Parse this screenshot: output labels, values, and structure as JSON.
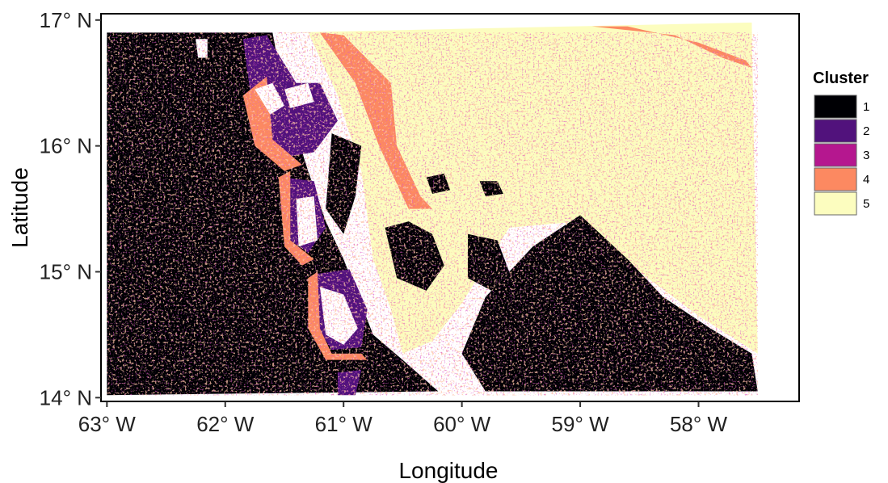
{
  "chart_data": {
    "type": "heatmap",
    "title": "",
    "xlabel": "Longitude",
    "ylabel": "Latitude",
    "xlim": [
      -63.05,
      -57.15
    ],
    "ylim": [
      13.97,
      17.05
    ],
    "x_ticks": [
      {
        "value": -63,
        "label": "63° W"
      },
      {
        "value": -62,
        "label": "62° W"
      },
      {
        "value": -61,
        "label": "61° W"
      },
      {
        "value": -60,
        "label": "60° W"
      },
      {
        "value": -59,
        "label": "59° W"
      },
      {
        "value": -58,
        "label": "58° W"
      }
    ],
    "y_ticks": [
      {
        "value": 14,
        "label": "14° N"
      },
      {
        "value": 15,
        "label": "15° N"
      },
      {
        "value": 16,
        "label": "16° N"
      },
      {
        "value": 17,
        "label": "17° N"
      }
    ],
    "grid": false,
    "legend": {
      "title": "Cluster",
      "placement": "right",
      "entries": [
        {
          "label": "1",
          "color": "#000004"
        },
        {
          "label": "2",
          "color": "#51127c"
        },
        {
          "label": "3",
          "color": "#b5178f"
        },
        {
          "label": "4",
          "color": "#fc8961"
        },
        {
          "label": "5",
          "color": "#fcfdbf"
        }
      ]
    },
    "land_color": "#ffffff",
    "regions": [
      {
        "cluster": 1,
        "description": "western deep water",
        "polygon": [
          [
            -63,
            16.9
          ],
          [
            -61.6,
            16.9
          ],
          [
            -61.5,
            16.4
          ],
          [
            -61.3,
            15.8
          ],
          [
            -61.15,
            15.4
          ],
          [
            -61.0,
            15.1
          ],
          [
            -60.75,
            14.5
          ],
          [
            -60.5,
            14.3
          ],
          [
            -60.2,
            14.05
          ],
          [
            -63,
            14.02
          ]
        ]
      },
      {
        "cluster": 5,
        "description": "eastern open water",
        "polygon": [
          [
            -61.5,
            16.9
          ],
          [
            -57.55,
            16.98
          ],
          [
            -57.5,
            14.35
          ],
          [
            -58.0,
            14.65
          ],
          [
            -58.5,
            15.0
          ],
          [
            -59.0,
            15.4
          ],
          [
            -59.6,
            15.35
          ],
          [
            -60.0,
            14.75
          ],
          [
            -60.25,
            14.45
          ],
          [
            -60.5,
            14.35
          ],
          [
            -60.6,
            14.7
          ],
          [
            -60.75,
            15.1
          ],
          [
            -60.85,
            15.8
          ],
          [
            -61.05,
            16.4
          ],
          [
            -61.3,
            16.9
          ]
        ]
      },
      {
        "cluster": 1,
        "description": "southeastern patch",
        "polygon": [
          [
            -59.8,
            14.8
          ],
          [
            -59.4,
            15.2
          ],
          [
            -59.0,
            15.45
          ],
          [
            -58.6,
            15.1
          ],
          [
            -58.3,
            14.8
          ],
          [
            -57.9,
            14.55
          ],
          [
            -57.55,
            14.35
          ],
          [
            -57.5,
            14.05
          ],
          [
            -59.8,
            14.05
          ],
          [
            -60.0,
            14.35
          ]
        ]
      },
      {
        "cluster": 1,
        "description": "central channel",
        "polygon": [
          [
            -61.1,
            16.1
          ],
          [
            -60.85,
            16.0
          ],
          [
            -60.9,
            15.6
          ],
          [
            -61.0,
            15.3
          ],
          [
            -61.15,
            15.5
          ]
        ]
      },
      {
        "cluster": 1,
        "description": "central blob A",
        "polygon": [
          [
            -60.65,
            15.35
          ],
          [
            -60.45,
            15.4
          ],
          [
            -60.25,
            15.3
          ],
          [
            -60.15,
            15.05
          ],
          [
            -60.3,
            14.85
          ],
          [
            -60.55,
            14.95
          ]
        ]
      },
      {
        "cluster": 1,
        "description": "central blob B",
        "polygon": [
          [
            -59.95,
            15.3
          ],
          [
            -59.7,
            15.25
          ],
          [
            -59.6,
            15.0
          ],
          [
            -59.75,
            14.85
          ],
          [
            -59.95,
            14.95
          ]
        ]
      },
      {
        "cluster": 1,
        "description": "central blob C",
        "polygon": [
          [
            -60.3,
            15.75
          ],
          [
            -60.15,
            15.78
          ],
          [
            -60.1,
            15.65
          ],
          [
            -60.25,
            15.62
          ]
        ]
      },
      {
        "cluster": 1,
        "description": "central blob D",
        "polygon": [
          [
            -59.85,
            15.72
          ],
          [
            -59.7,
            15.72
          ],
          [
            -59.65,
            15.62
          ],
          [
            -59.8,
            15.6
          ]
        ]
      },
      {
        "cluster": 4,
        "description": "eastern shelf band",
        "polygon": [
          [
            -61.2,
            16.9
          ],
          [
            -61.0,
            16.88
          ],
          [
            -60.6,
            16.5
          ],
          [
            -60.55,
            16.0
          ],
          [
            -60.35,
            15.6
          ],
          [
            -60.25,
            15.5
          ],
          [
            -60.45,
            15.5
          ],
          [
            -60.7,
            16.0
          ],
          [
            -60.9,
            16.5
          ]
        ]
      },
      {
        "cluster": 4,
        "description": "northeast arc",
        "polygon": [
          [
            -58.9,
            16.95
          ],
          [
            -58.2,
            16.88
          ],
          [
            -57.8,
            16.7
          ],
          [
            -57.55,
            16.62
          ],
          [
            -57.6,
            16.68
          ],
          [
            -58.0,
            16.82
          ],
          [
            -58.6,
            16.95
          ]
        ]
      },
      {
        "cluster": 2,
        "description": "shelf around northern island",
        "polygon": [
          [
            -61.85,
            16.85
          ],
          [
            -61.65,
            16.88
          ],
          [
            -61.4,
            16.5
          ],
          [
            -61.2,
            16.5
          ],
          [
            -61.05,
            16.2
          ],
          [
            -61.25,
            15.95
          ],
          [
            -61.55,
            15.9
          ],
          [
            -61.75,
            16.15
          ],
          [
            -61.8,
            16.5
          ]
        ]
      },
      {
        "cluster": 2,
        "description": "shelf around middle island",
        "polygon": [
          [
            -61.5,
            15.75
          ],
          [
            -61.25,
            15.72
          ],
          [
            -61.15,
            15.35
          ],
          [
            -61.3,
            15.15
          ],
          [
            -61.45,
            15.25
          ]
        ]
      },
      {
        "cluster": 2,
        "description": "shelf around southern island",
        "polygon": [
          [
            -61.25,
            14.98
          ],
          [
            -60.95,
            15.02
          ],
          [
            -60.8,
            14.7
          ],
          [
            -60.85,
            14.4
          ],
          [
            -61.1,
            14.38
          ],
          [
            -61.25,
            14.6
          ]
        ]
      },
      {
        "cluster": 2,
        "description": "shelf at southern edge",
        "polygon": [
          [
            -61.05,
            14.2
          ],
          [
            -60.85,
            14.22
          ],
          [
            -60.9,
            14.02
          ],
          [
            -61.05,
            14.02
          ]
        ]
      },
      {
        "cluster": 4,
        "description": "coastal fringe north",
        "polygon": [
          [
            -61.85,
            16.4
          ],
          [
            -61.65,
            16.55
          ],
          [
            -61.6,
            16.05
          ],
          [
            -61.35,
            15.85
          ],
          [
            -61.5,
            15.8
          ],
          [
            -61.75,
            16.0
          ]
        ]
      },
      {
        "cluster": 4,
        "description": "coastal fringe middle",
        "polygon": [
          [
            -61.55,
            15.75
          ],
          [
            -61.45,
            15.8
          ],
          [
            -61.45,
            15.25
          ],
          [
            -61.25,
            15.1
          ],
          [
            -61.35,
            15.05
          ],
          [
            -61.5,
            15.2
          ]
        ]
      },
      {
        "cluster": 4,
        "description": "coastal fringe south",
        "polygon": [
          [
            -61.3,
            14.95
          ],
          [
            -61.22,
            15.0
          ],
          [
            -61.2,
            14.55
          ],
          [
            -61.1,
            14.35
          ],
          [
            -60.85,
            14.35
          ],
          [
            -60.8,
            14.3
          ],
          [
            -61.15,
            14.3
          ],
          [
            -61.3,
            14.55
          ]
        ]
      },
      {
        "cluster": 5,
        "description": "island (land) north",
        "polygon": [
          [
            -61.75,
            16.45
          ],
          [
            -61.6,
            16.5
          ],
          [
            -61.5,
            16.32
          ],
          [
            -61.62,
            16.25
          ]
        ]
      },
      {
        "cluster": 5,
        "description": "island (land) northeast",
        "polygon": [
          [
            -61.5,
            16.45
          ],
          [
            -61.3,
            16.5
          ],
          [
            -61.25,
            16.35
          ],
          [
            -61.45,
            16.3
          ]
        ]
      },
      {
        "cluster": 5,
        "description": "island (land) middle",
        "polygon": [
          [
            -61.4,
            15.58
          ],
          [
            -61.25,
            15.6
          ],
          [
            -61.22,
            15.25
          ],
          [
            -61.38,
            15.2
          ]
        ]
      },
      {
        "cluster": 5,
        "description": "island (land) south",
        "polygon": [
          [
            -61.2,
            14.88
          ],
          [
            -61.0,
            14.82
          ],
          [
            -60.88,
            14.55
          ],
          [
            -61.0,
            14.42
          ],
          [
            -61.15,
            14.5
          ]
        ]
      },
      {
        "cluster": 5,
        "description": "islet northwest",
        "polygon": [
          [
            -62.25,
            16.85
          ],
          [
            -62.15,
            16.85
          ],
          [
            -62.15,
            16.7
          ],
          [
            -62.23,
            16.7
          ]
        ]
      }
    ]
  }
}
